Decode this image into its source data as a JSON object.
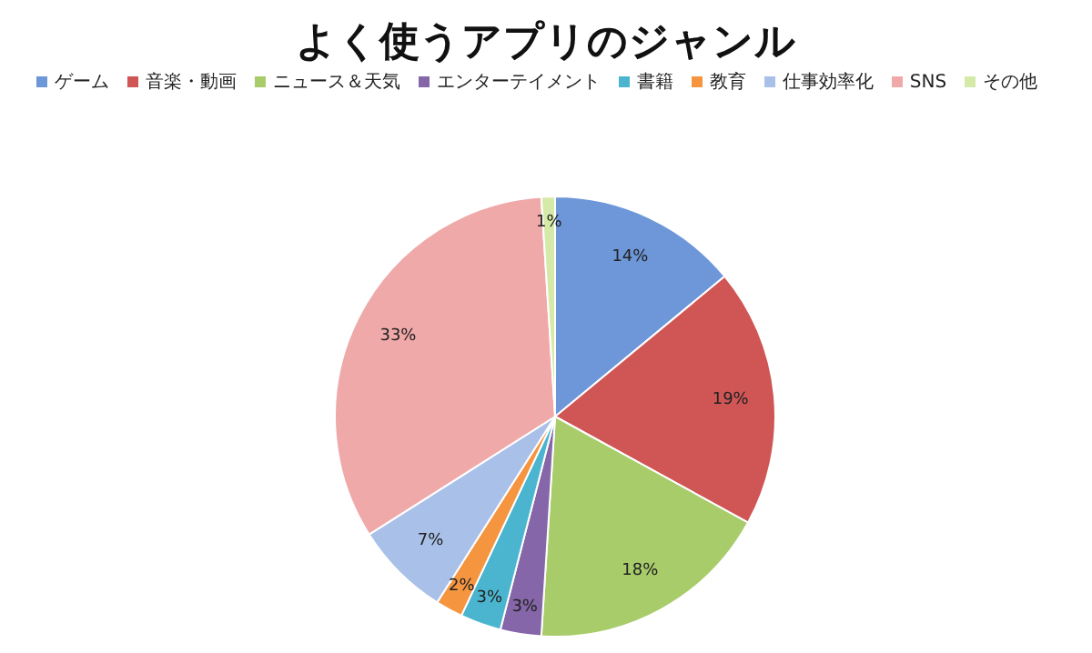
{
  "chart_data": {
    "type": "pie",
    "title": "よく使うアプリのジャンル",
    "categories": [
      "ゲーム",
      "音楽・動画",
      "ニュース＆天気",
      "エンターテイメント",
      "書籍",
      "教育",
      "仕事効率化",
      "SNS",
      "その他"
    ],
    "values": [
      14,
      19,
      18,
      3,
      3,
      2,
      7,
      33,
      1
    ],
    "value_labels": [
      "14%",
      "19%",
      "18%",
      "3%",
      "3%",
      "2%",
      "7%",
      "33%",
      "1%"
    ],
    "colors": [
      "#6d97d8",
      "#d05555",
      "#a8cc6a",
      "#8566a8",
      "#4bb5cf",
      "#f59540",
      "#a9c0e8",
      "#f0a9a9",
      "#d5eaa8"
    ],
    "legend": "top"
  }
}
